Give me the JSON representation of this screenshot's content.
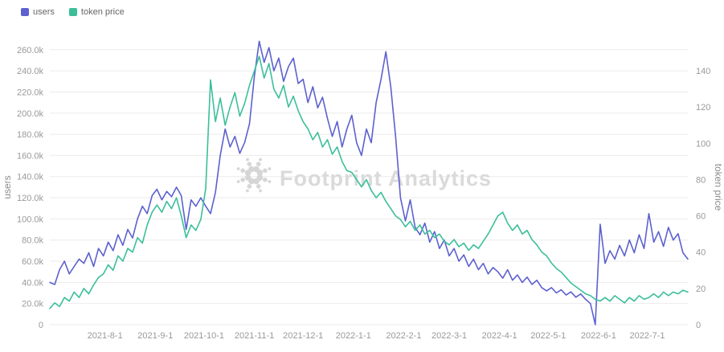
{
  "chart_data": {
    "type": "line",
    "title": "",
    "watermark": "Footprint Analytics",
    "legend_position": "top-left",
    "grid": "horizontal",
    "x_axis": {
      "tick_labels": [
        "2021-8-1",
        "2021-9-1",
        "2021-10-1",
        "2021-11-1",
        "2021-12-1",
        "2022-1-1",
        "2022-2-1",
        "2022-3-1",
        "2022-4-1",
        "2022-5-1",
        "2022-6-1",
        "2022-7-1"
      ],
      "tick_days": [
        34,
        65,
        95,
        126,
        156,
        187,
        218,
        246,
        277,
        307,
        338,
        368
      ],
      "domain_days": [
        0,
        393
      ]
    },
    "left_axis": {
      "title": "users",
      "tick_values_thousands": [
        0,
        20,
        40,
        60,
        80,
        100,
        120,
        140,
        160,
        180,
        200,
        220,
        240,
        260
      ],
      "max_thousands": 272,
      "unit_suffix": "k"
    },
    "right_axis": {
      "title": "token price",
      "tick_values": [
        0,
        20,
        40,
        60,
        80,
        100,
        120,
        140
      ],
      "max": 158.67
    },
    "days": [
      0,
      3,
      6,
      9,
      12,
      15,
      18,
      21,
      24,
      27,
      30,
      33,
      36,
      39,
      42,
      45,
      48,
      51,
      54,
      57,
      60,
      63,
      66,
      69,
      72,
      75,
      78,
      81,
      84,
      87,
      90,
      93,
      96,
      99,
      102,
      105,
      108,
      111,
      114,
      117,
      120,
      123,
      126,
      129,
      132,
      135,
      138,
      141,
      144,
      147,
      150,
      153,
      156,
      159,
      162,
      165,
      168,
      171,
      174,
      177,
      180,
      183,
      186,
      189,
      192,
      195,
      198,
      201,
      204,
      207,
      210,
      213,
      216,
      219,
      222,
      225,
      228,
      231,
      234,
      237,
      240,
      243,
      246,
      249,
      252,
      255,
      258,
      261,
      264,
      267,
      270,
      273,
      276,
      279,
      282,
      285,
      288,
      291,
      294,
      297,
      300,
      303,
      306,
      309,
      312,
      315,
      318,
      321,
      324,
      327,
      330,
      333,
      336,
      339,
      342,
      345,
      348,
      351,
      354,
      357,
      360,
      363,
      366,
      369,
      372,
      375,
      378,
      381,
      384,
      387,
      390,
      393
    ],
    "series": [
      {
        "name": "users",
        "axis": "left",
        "color": "#5c61ce",
        "values_thousands": [
          40,
          38,
          52,
          60,
          48,
          55,
          62,
          58,
          68,
          55,
          72,
          65,
          78,
          70,
          85,
          75,
          90,
          82,
          100,
          112,
          105,
          122,
          128,
          118,
          126,
          121,
          130,
          122,
          90,
          118,
          112,
          120,
          112,
          105,
          125,
          160,
          185,
          168,
          178,
          162,
          172,
          190,
          235,
          268,
          248,
          262,
          240,
          252,
          230,
          244,
          252,
          228,
          232,
          210,
          225,
          205,
          215,
          195,
          178,
          192,
          168,
          185,
          198,
          172,
          160,
          185,
          172,
          210,
          232,
          258,
          225,
          178,
          120,
          98,
          118,
          92,
          85,
          96,
          78,
          88,
          72,
          80,
          65,
          72,
          60,
          66,
          55,
          62,
          52,
          58,
          48,
          54,
          50,
          44,
          52,
          42,
          47,
          40,
          45,
          38,
          42,
          35,
          32,
          35,
          30,
          33,
          28,
          31,
          26,
          29,
          24,
          20,
          0,
          95,
          58,
          70,
          62,
          75,
          65,
          80,
          68,
          85,
          72,
          105,
          78,
          88,
          74,
          92,
          80,
          86,
          68,
          62
        ]
      },
      {
        "name": "token price",
        "axis": "right",
        "color": "#3bbf9a",
        "values": [
          9,
          12,
          10,
          15,
          13,
          18,
          15,
          20,
          17,
          22,
          26,
          28,
          33,
          30,
          38,
          35,
          42,
          40,
          48,
          45,
          55,
          62,
          66,
          62,
          68,
          64,
          70,
          60,
          48,
          55,
          52,
          58,
          75,
          135,
          112,
          125,
          110,
          120,
          128,
          115,
          122,
          132,
          140,
          148,
          136,
          144,
          130,
          125,
          132,
          120,
          126,
          118,
          112,
          108,
          102,
          106,
          98,
          102,
          94,
          98,
          90,
          85,
          84,
          80,
          76,
          80,
          74,
          70,
          73,
          68,
          64,
          60,
          58,
          54,
          57,
          52,
          55,
          50,
          52,
          48,
          50,
          46,
          44,
          47,
          43,
          45,
          41,
          44,
          42,
          46,
          50,
          55,
          60,
          62,
          56,
          52,
          55,
          50,
          52,
          47,
          44,
          40,
          38,
          34,
          31,
          29,
          26,
          23,
          21,
          19,
          17,
          16,
          14,
          13,
          15,
          13,
          16,
          14,
          12,
          15,
          13,
          16,
          14,
          15,
          17,
          15,
          18,
          16,
          18,
          17,
          19,
          18
        ]
      }
    ]
  }
}
